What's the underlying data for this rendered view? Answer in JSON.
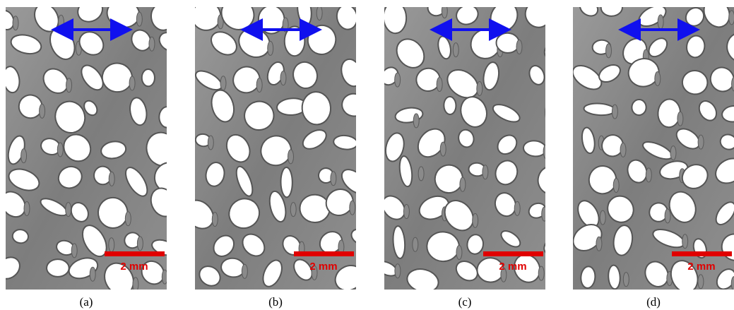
{
  "panels": [
    {
      "label": "(a)",
      "scale_bar": "2 mm"
    },
    {
      "label": "(b)",
      "scale_bar": "2 mm"
    },
    {
      "label": "(c)",
      "scale_bar": "2 mm"
    },
    {
      "label": "(d)",
      "scale_bar": "2 mm"
    }
  ]
}
